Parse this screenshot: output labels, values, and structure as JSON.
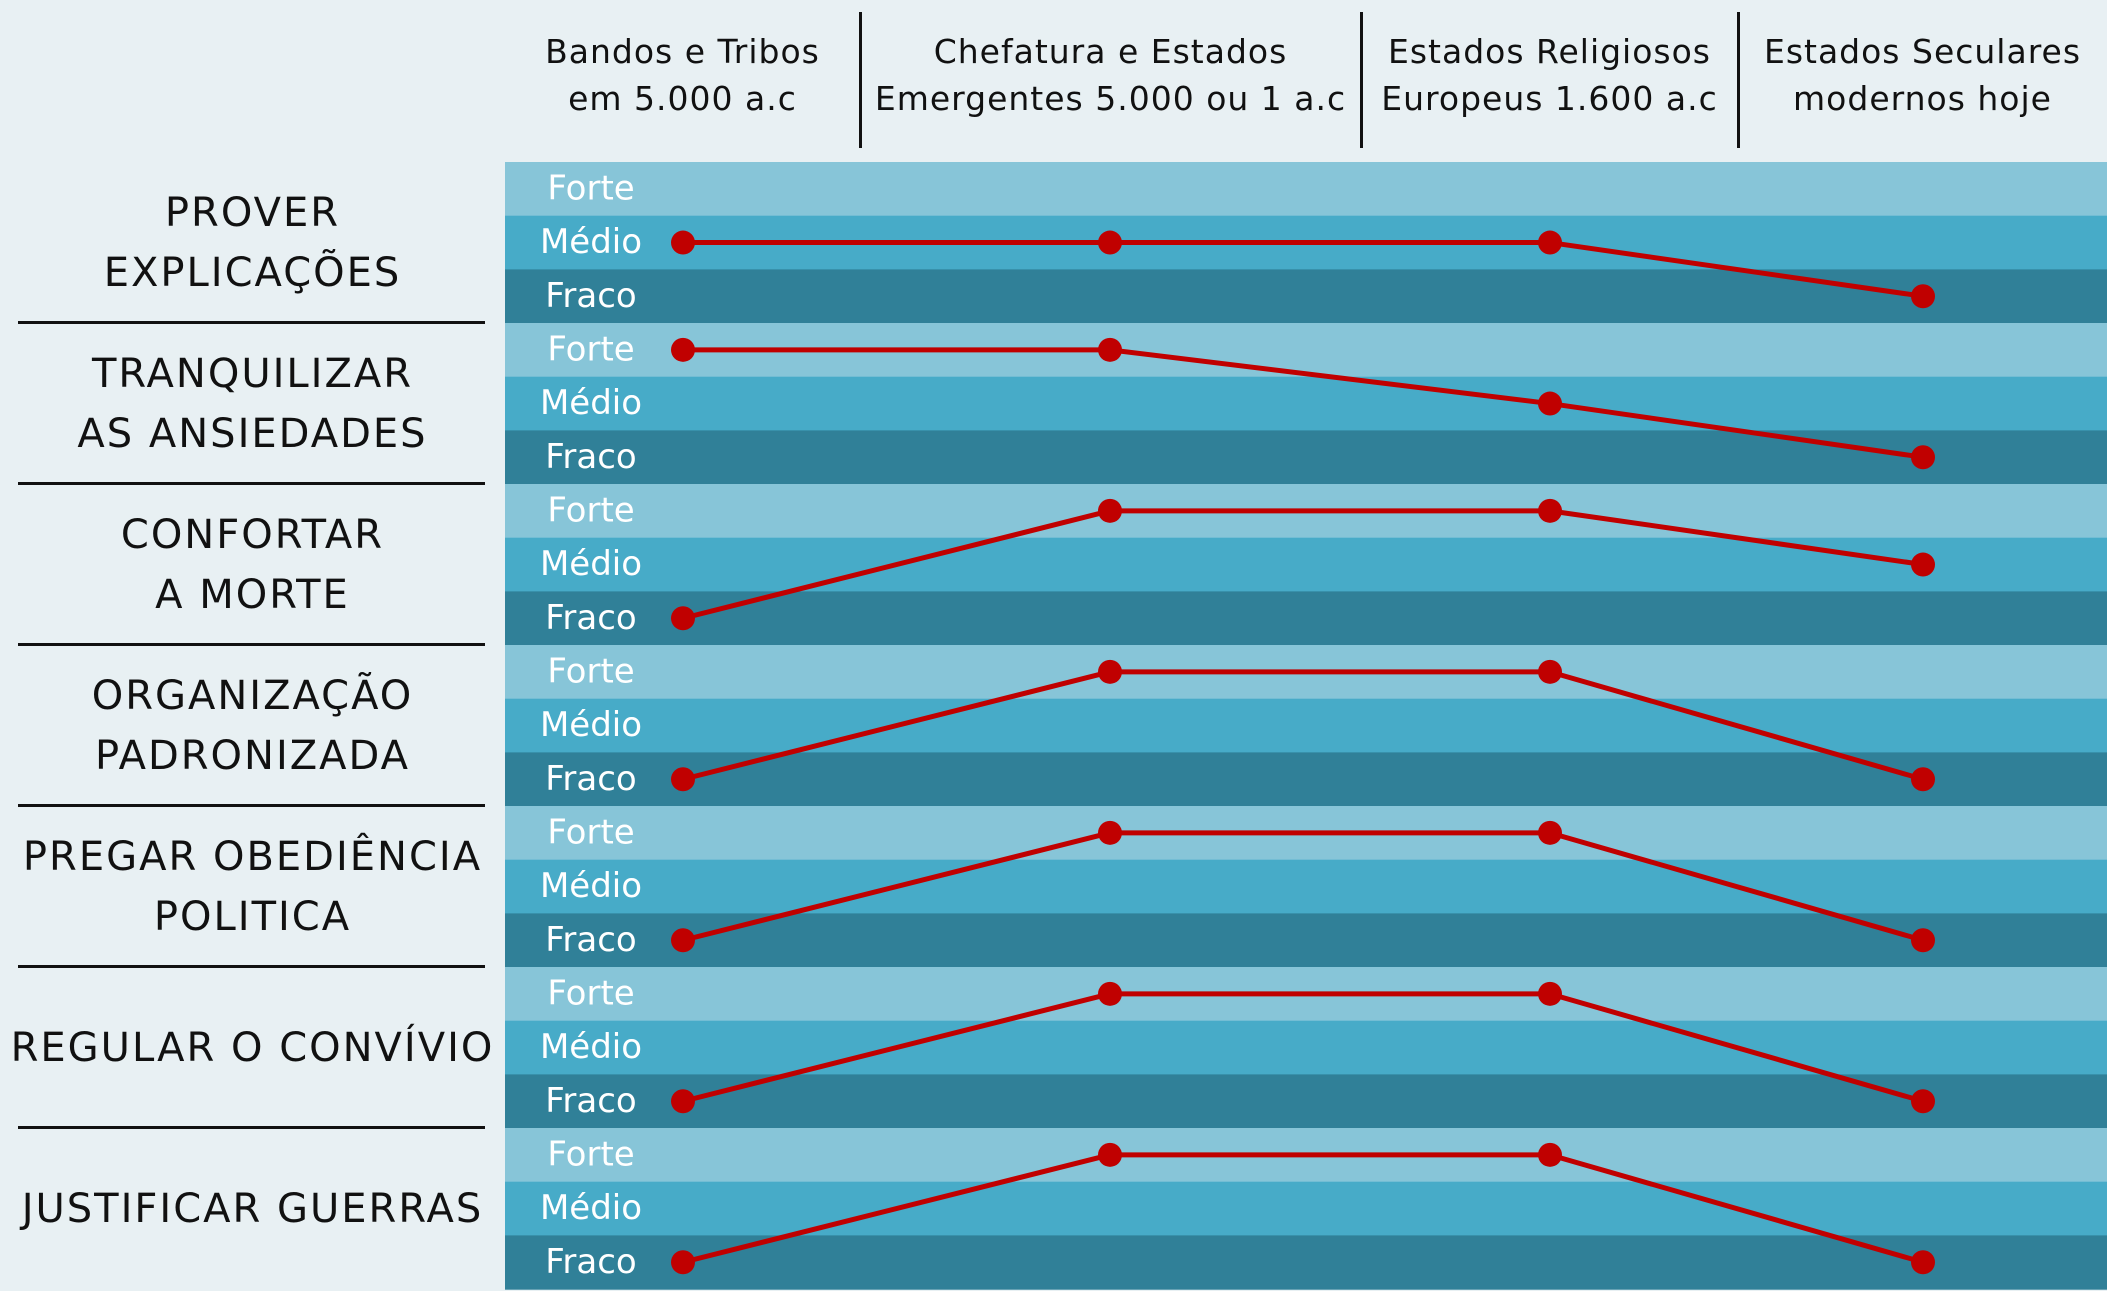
{
  "chart_data": {
    "type": "line",
    "levels": [
      "Forte",
      "Médio",
      "Fraco"
    ],
    "columns": [
      {
        "line1": "Bandos e Tribos",
        "line2": "em 5.000 a.c"
      },
      {
        "line1": "Chefatura e Estados",
        "line2": "Emergentes 5.000 ou 1 a.c"
      },
      {
        "line1": "Estados Religiosos",
        "line2": "Europeus 1.600 a.c"
      },
      {
        "line1": "Estados Seculares",
        "line2": "modernos hoje"
      }
    ],
    "rows": [
      {
        "line1": "PROVER",
        "line2": "EXPLICAÇÕES",
        "values": [
          "Médio",
          "Médio",
          "Médio",
          "Fraco"
        ]
      },
      {
        "line1": "TRANQUILIZAR",
        "line2": "AS ANSIEDADES",
        "values": [
          "Forte",
          "Forte",
          "Médio",
          "Fraco"
        ]
      },
      {
        "line1": "CONFORTAR",
        "line2": "A MORTE",
        "values": [
          "Fraco",
          "Forte",
          "Forte",
          "Médio"
        ]
      },
      {
        "line1": "ORGANIZAÇÃO",
        "line2": "PADRONIZADA",
        "values": [
          "Fraco",
          "Forte",
          "Forte",
          "Fraco"
        ]
      },
      {
        "line1": "PREGAR OBEDIÊNCIA",
        "line2": "POLITICA",
        "values": [
          "Fraco",
          "Forte",
          "Forte",
          "Fraco"
        ]
      },
      {
        "line1": "REGULAR O CONVÍVIO",
        "line2": "",
        "values": [
          "Fraco",
          "Forte",
          "Forte",
          "Fraco"
        ]
      },
      {
        "line1": "JUSTIFICAR GUERRAS",
        "line2": "",
        "values": [
          "Fraco",
          "Forte",
          "Forte",
          "Fraco"
        ]
      }
    ],
    "colors": {
      "background": "#e8f0f3",
      "band_forte": "#87c5d8",
      "band_medio": "#47abc8",
      "band_fraco": "#308098",
      "line": "#c00000",
      "level_label": "#ffffff"
    }
  }
}
